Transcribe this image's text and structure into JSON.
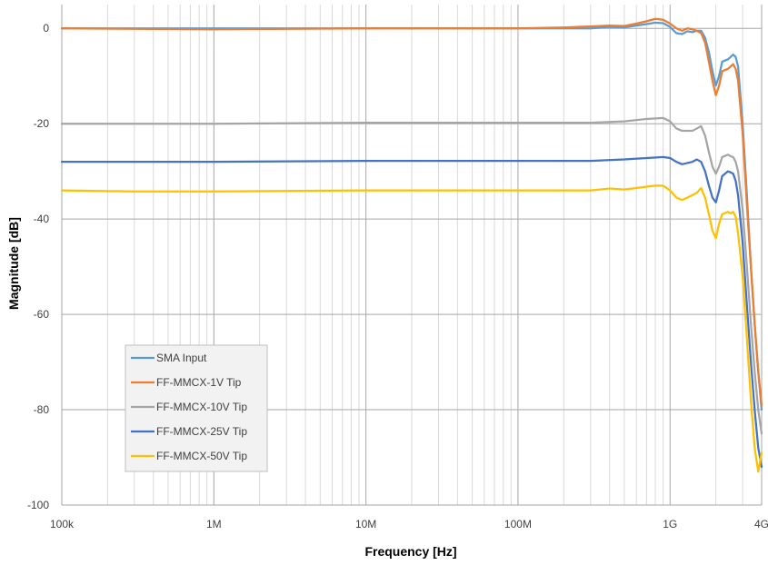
{
  "chart_data": {
    "type": "line",
    "title": "",
    "xlabel": "Frequency [Hz]",
    "ylabel": "Magnitude [dB]",
    "x_scale": "log",
    "xlim": [
      100000,
      4000000000
    ],
    "ylim": [
      -100,
      5
    ],
    "x_ticks": [
      {
        "value": 100000,
        "label": "100k"
      },
      {
        "value": 1000000,
        "label": "1M"
      },
      {
        "value": 10000000,
        "label": "10M"
      },
      {
        "value": 100000000,
        "label": "100M"
      },
      {
        "value": 1000000000,
        "label": "1G"
      },
      {
        "value": 4000000000,
        "label": "4G"
      }
    ],
    "y_ticks": [
      {
        "value": 0,
        "label": "0"
      },
      {
        "value": -20,
        "label": "-20"
      },
      {
        "value": -40,
        "label": "-40"
      },
      {
        "value": -60,
        "label": "-60"
      },
      {
        "value": -80,
        "label": "-80"
      },
      {
        "value": -100,
        "label": "-100"
      }
    ],
    "grid": true,
    "legend_position": "bottom-left",
    "series": [
      {
        "name": "SMA Input",
        "color": "#5B9BD5",
        "points": [
          [
            100000,
            0
          ],
          [
            1000000,
            0
          ],
          [
            10000000,
            0
          ],
          [
            100000000,
            0
          ],
          [
            200000000,
            0
          ],
          [
            300000000,
            0
          ],
          [
            400000000,
            0.3
          ],
          [
            500000000,
            0.2
          ],
          [
            600000000,
            0.6
          ],
          [
            700000000,
            0.9
          ],
          [
            800000000,
            1.2
          ],
          [
            900000000,
            1.1
          ],
          [
            1000000000,
            0.3
          ],
          [
            1100000000,
            -1
          ],
          [
            1200000000,
            -1.2
          ],
          [
            1300000000,
            -0.6
          ],
          [
            1400000000,
            -0.8
          ],
          [
            1500000000,
            -0.5
          ],
          [
            1600000000,
            -0.5
          ],
          [
            1700000000,
            -2
          ],
          [
            1800000000,
            -5
          ],
          [
            1900000000,
            -9
          ],
          [
            2000000000,
            -12
          ],
          [
            2100000000,
            -10
          ],
          [
            2200000000,
            -7
          ],
          [
            2400000000,
            -6.5
          ],
          [
            2500000000,
            -6
          ],
          [
            2600000000,
            -5.5
          ],
          [
            2700000000,
            -6
          ],
          [
            2800000000,
            -8
          ],
          [
            3000000000,
            -20
          ],
          [
            3200000000,
            -35
          ],
          [
            3400000000,
            -50
          ],
          [
            3600000000,
            -62
          ],
          [
            3800000000,
            -72
          ],
          [
            4000000000,
            -80
          ]
        ]
      },
      {
        "name": "FF-MMCX-1V Tip",
        "color": "#ED7D31",
        "points": [
          [
            100000,
            0
          ],
          [
            1000000,
            -0.2
          ],
          [
            10000000,
            0
          ],
          [
            100000000,
            0
          ],
          [
            200000000,
            0.2
          ],
          [
            300000000,
            0.4
          ],
          [
            400000000,
            0.6
          ],
          [
            500000000,
            0.5
          ],
          [
            600000000,
            1
          ],
          [
            700000000,
            1.5
          ],
          [
            800000000,
            2
          ],
          [
            900000000,
            1.8
          ],
          [
            1000000000,
            1
          ],
          [
            1100000000,
            0
          ],
          [
            1200000000,
            -0.5
          ],
          [
            1300000000,
            0
          ],
          [
            1400000000,
            -0.2
          ],
          [
            1500000000,
            -0.5
          ],
          [
            1600000000,
            -1
          ],
          [
            1700000000,
            -3
          ],
          [
            1800000000,
            -7
          ],
          [
            1900000000,
            -11
          ],
          [
            2000000000,
            -14
          ],
          [
            2100000000,
            -12
          ],
          [
            2200000000,
            -9
          ],
          [
            2400000000,
            -8.5
          ],
          [
            2500000000,
            -8
          ],
          [
            2600000000,
            -7.5
          ],
          [
            2700000000,
            -8.5
          ],
          [
            2800000000,
            -11
          ],
          [
            3000000000,
            -22
          ],
          [
            3200000000,
            -37
          ],
          [
            3400000000,
            -50
          ],
          [
            3600000000,
            -62
          ],
          [
            3800000000,
            -72
          ],
          [
            4000000000,
            -79
          ]
        ]
      },
      {
        "name": "FF-MMCX-10V Tip",
        "color": "#A5A5A5",
        "points": [
          [
            100000,
            -20
          ],
          [
            1000000,
            -20
          ],
          [
            10000000,
            -19.8
          ],
          [
            100000000,
            -19.8
          ],
          [
            300000000,
            -19.8
          ],
          [
            500000000,
            -19.5
          ],
          [
            700000000,
            -19
          ],
          [
            900000000,
            -18.8
          ],
          [
            1000000000,
            -19.5
          ],
          [
            1100000000,
            -21
          ],
          [
            1200000000,
            -21.5
          ],
          [
            1400000000,
            -21.5
          ],
          [
            1500000000,
            -21
          ],
          [
            1600000000,
            -20.5
          ],
          [
            1700000000,
            -22.5
          ],
          [
            1800000000,
            -26
          ],
          [
            1900000000,
            -29
          ],
          [
            2000000000,
            -30.5
          ],
          [
            2100000000,
            -29
          ],
          [
            2200000000,
            -27
          ],
          [
            2400000000,
            -26.5
          ],
          [
            2500000000,
            -26.8
          ],
          [
            2600000000,
            -27
          ],
          [
            2700000000,
            -28
          ],
          [
            2800000000,
            -30
          ],
          [
            3000000000,
            -38
          ],
          [
            3200000000,
            -50
          ],
          [
            3400000000,
            -62
          ],
          [
            3600000000,
            -72
          ],
          [
            3800000000,
            -80
          ],
          [
            4000000000,
            -85
          ]
        ]
      },
      {
        "name": "FF-MMCX-25V Tip",
        "color": "#4472C4",
        "points": [
          [
            100000,
            -28
          ],
          [
            1000000,
            -28
          ],
          [
            10000000,
            -27.8
          ],
          [
            100000000,
            -27.8
          ],
          [
            300000000,
            -27.8
          ],
          [
            500000000,
            -27.5
          ],
          [
            700000000,
            -27.2
          ],
          [
            900000000,
            -27
          ],
          [
            1000000000,
            -27.2
          ],
          [
            1100000000,
            -28
          ],
          [
            1200000000,
            -28.5
          ],
          [
            1400000000,
            -28
          ],
          [
            1500000000,
            -27.5
          ],
          [
            1600000000,
            -28
          ],
          [
            1700000000,
            -30
          ],
          [
            1800000000,
            -33
          ],
          [
            1900000000,
            -35.5
          ],
          [
            2000000000,
            -36.5
          ],
          [
            2100000000,
            -34
          ],
          [
            2200000000,
            -31
          ],
          [
            2400000000,
            -30
          ],
          [
            2500000000,
            -30.2
          ],
          [
            2600000000,
            -30.5
          ],
          [
            2700000000,
            -32
          ],
          [
            2800000000,
            -35
          ],
          [
            3000000000,
            -45
          ],
          [
            3200000000,
            -58
          ],
          [
            3400000000,
            -70
          ],
          [
            3600000000,
            -80
          ],
          [
            3800000000,
            -88
          ],
          [
            4000000000,
            -92
          ]
        ]
      },
      {
        "name": "FF-MMCX-50V Tip",
        "color": "#FFC000",
        "points": [
          [
            100000,
            -34
          ],
          [
            300000,
            -34.2
          ],
          [
            1000000,
            -34.2
          ],
          [
            10000000,
            -34
          ],
          [
            100000000,
            -34
          ],
          [
            300000000,
            -34
          ],
          [
            400000000,
            -33.6
          ],
          [
            500000000,
            -33.8
          ],
          [
            600000000,
            -33.5
          ],
          [
            700000000,
            -33.2
          ],
          [
            800000000,
            -33
          ],
          [
            900000000,
            -33
          ],
          [
            1000000000,
            -34
          ],
          [
            1100000000,
            -35.5
          ],
          [
            1200000000,
            -36
          ],
          [
            1300000000,
            -35.5
          ],
          [
            1400000000,
            -35
          ],
          [
            1500000000,
            -34.5
          ],
          [
            1600000000,
            -33.5
          ],
          [
            1700000000,
            -35.5
          ],
          [
            1800000000,
            -39
          ],
          [
            1900000000,
            -42.5
          ],
          [
            2000000000,
            -44
          ],
          [
            2100000000,
            -41
          ],
          [
            2200000000,
            -39
          ],
          [
            2400000000,
            -38.5
          ],
          [
            2500000000,
            -38.8
          ],
          [
            2600000000,
            -38.5
          ],
          [
            2700000000,
            -39.5
          ],
          [
            2800000000,
            -43
          ],
          [
            3000000000,
            -52
          ],
          [
            3200000000,
            -65
          ],
          [
            3400000000,
            -78
          ],
          [
            3600000000,
            -88
          ],
          [
            3800000000,
            -93
          ],
          [
            4000000000,
            -89
          ]
        ]
      }
    ]
  }
}
